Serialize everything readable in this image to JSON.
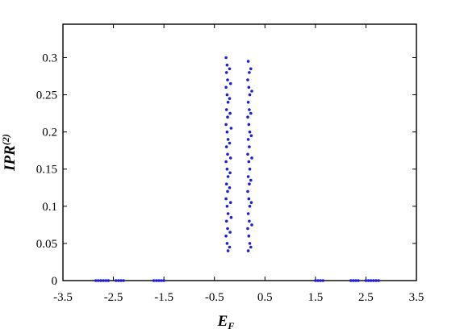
{
  "chart_data": {
    "type": "scatter",
    "title": "",
    "xlabel": "E",
    "xlabel_sub": "F",
    "ylabel": "IPR",
    "ylabel_sup": "(2)",
    "xlim": [
      -3.5,
      3.5
    ],
    "ylim": [
      0,
      0.345
    ],
    "x_ticks": [
      -3.5,
      -2.5,
      -1.5,
      -0.5,
      0.5,
      1.5,
      2.5,
      3.5
    ],
    "x_tick_labels": [
      "-3.5",
      "-2.5",
      "-1.5",
      "-0.5",
      "0.5",
      "1.5",
      "2.5",
      "3.5"
    ],
    "y_ticks": [
      0,
      0.05,
      0.1,
      0.15,
      0.2,
      0.25,
      0.3
    ],
    "y_tick_labels": [
      "0",
      "0.05",
      "0.1",
      "0.15",
      "0.2",
      "0.25",
      "0.3"
    ],
    "grid": false,
    "marker_color": "#1f1fd6",
    "series": [
      {
        "values": [
          [
            -2.85,
            0.0
          ],
          [
            -2.8,
            0.0
          ],
          [
            -2.75,
            0.0
          ],
          [
            -2.7,
            0.0
          ],
          [
            -2.65,
            0.0
          ],
          [
            -2.6,
            0.0
          ],
          [
            -2.45,
            0.0
          ],
          [
            -2.4,
            0.0
          ],
          [
            -2.35,
            0.0
          ],
          [
            -2.3,
            0.0
          ],
          [
            -1.7,
            0.0
          ],
          [
            -1.65,
            0.0
          ],
          [
            -1.6,
            0.0
          ],
          [
            -1.55,
            0.0
          ],
          [
            -1.5,
            0.0
          ],
          [
            1.5,
            0.0
          ],
          [
            1.55,
            0.0
          ],
          [
            1.6,
            0.0
          ],
          [
            1.65,
            0.0
          ],
          [
            2.2,
            0.0
          ],
          [
            2.25,
            0.0
          ],
          [
            2.3,
            0.0
          ],
          [
            2.35,
            0.0
          ],
          [
            2.5,
            0.0
          ],
          [
            2.55,
            0.0
          ],
          [
            2.6,
            0.0
          ],
          [
            2.65,
            0.0
          ],
          [
            2.7,
            0.0
          ],
          [
            2.75,
            0.0
          ],
          [
            -0.27,
            0.3
          ],
          [
            -0.25,
            0.29
          ],
          [
            -0.26,
            0.28
          ],
          [
            -0.24,
            0.27
          ],
          [
            -0.27,
            0.26
          ],
          [
            -0.25,
            0.25
          ],
          [
            -0.23,
            0.24
          ],
          [
            -0.26,
            0.23
          ],
          [
            -0.24,
            0.22
          ],
          [
            -0.27,
            0.21
          ],
          [
            -0.25,
            0.2
          ],
          [
            -0.23,
            0.19
          ],
          [
            -0.26,
            0.18
          ],
          [
            -0.24,
            0.17
          ],
          [
            -0.27,
            0.16
          ],
          [
            -0.25,
            0.15
          ],
          [
            -0.23,
            0.14
          ],
          [
            -0.26,
            0.13
          ],
          [
            -0.24,
            0.12
          ],
          [
            -0.27,
            0.11
          ],
          [
            -0.25,
            0.1
          ],
          [
            -0.23,
            0.09
          ],
          [
            -0.26,
            0.08
          ],
          [
            -0.24,
            0.07
          ],
          [
            -0.27,
            0.06
          ],
          [
            -0.25,
            0.05
          ],
          [
            -0.23,
            0.04
          ],
          [
            -0.2,
            0.285
          ],
          [
            -0.18,
            0.265
          ],
          [
            -0.2,
            0.245
          ],
          [
            -0.19,
            0.225
          ],
          [
            -0.17,
            0.205
          ],
          [
            -0.2,
            0.185
          ],
          [
            -0.18,
            0.165
          ],
          [
            -0.19,
            0.145
          ],
          [
            -0.2,
            0.125
          ],
          [
            -0.18,
            0.105
          ],
          [
            -0.17,
            0.085
          ],
          [
            -0.19,
            0.065
          ],
          [
            -0.2,
            0.045
          ],
          [
            0.17,
            0.295
          ],
          [
            0.19,
            0.28
          ],
          [
            0.16,
            0.27
          ],
          [
            0.18,
            0.26
          ],
          [
            0.2,
            0.25
          ],
          [
            0.17,
            0.24
          ],
          [
            0.19,
            0.23
          ],
          [
            0.16,
            0.22
          ],
          [
            0.18,
            0.21
          ],
          [
            0.2,
            0.2
          ],
          [
            0.17,
            0.19
          ],
          [
            0.19,
            0.18
          ],
          [
            0.16,
            0.17
          ],
          [
            0.18,
            0.16
          ],
          [
            0.2,
            0.15
          ],
          [
            0.17,
            0.14
          ],
          [
            0.19,
            0.13
          ],
          [
            0.16,
            0.12
          ],
          [
            0.18,
            0.11
          ],
          [
            0.2,
            0.1
          ],
          [
            0.17,
            0.09
          ],
          [
            0.19,
            0.08
          ],
          [
            0.16,
            0.07
          ],
          [
            0.18,
            0.06
          ],
          [
            0.2,
            0.05
          ],
          [
            0.17,
            0.04
          ],
          [
            0.22,
            0.285
          ],
          [
            0.24,
            0.255
          ],
          [
            0.22,
            0.225
          ],
          [
            0.23,
            0.195
          ],
          [
            0.24,
            0.165
          ],
          [
            0.22,
            0.135
          ],
          [
            0.23,
            0.105
          ],
          [
            0.24,
            0.075
          ],
          [
            0.22,
            0.045
          ]
        ]
      }
    ]
  }
}
